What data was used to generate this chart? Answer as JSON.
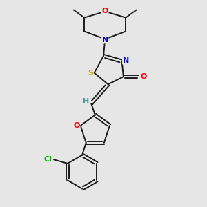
{
  "bg_color": "#e6e6e6",
  "bond_color": "#1a1a1a",
  "atom_colors": {
    "O": "#ff0000",
    "N": "#0000cc",
    "S": "#ccaa00",
    "Cl": "#00aa00",
    "H": "#4a9a9a",
    "C": "#1a1a1a"
  },
  "figsize": [
    3.0,
    3.0
  ],
  "dpi": 100
}
